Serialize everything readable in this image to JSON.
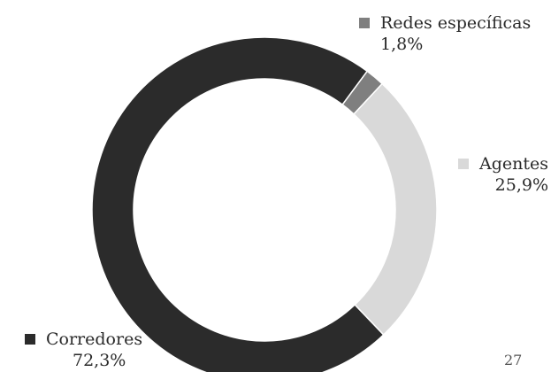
{
  "chart_data": {
    "type": "pie",
    "variant": "donut",
    "title": "",
    "slices": [
      {
        "label": "Corredores",
        "value": 72.3,
        "display": "72,3%",
        "color": "#2b2b2b"
      },
      {
        "label": "Redes específicas",
        "value": 1.8,
        "display": "1,8%",
        "color": "#7f7f7f"
      },
      {
        "label": "Agentes",
        "value": 25.9,
        "display": "25,9%",
        "color": "#d9d9d9"
      }
    ],
    "legend_placement": "around"
  },
  "page": {
    "number": "27"
  }
}
